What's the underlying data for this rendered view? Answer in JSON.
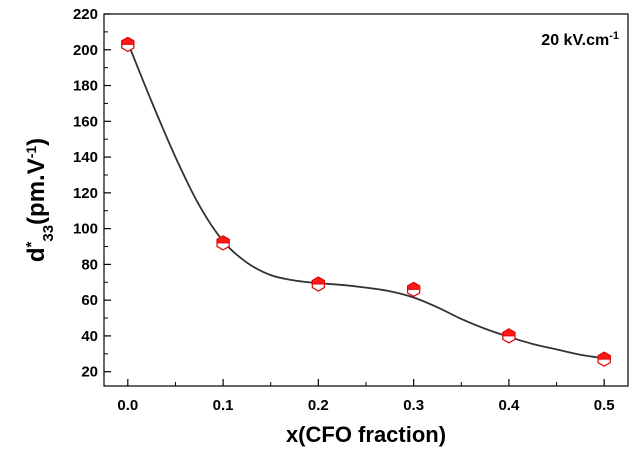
{
  "chart_data": {
    "type": "scatter",
    "xlabel": "x(CFO fraction)",
    "ylabel": {
      "base": "d",
      "sup": "*",
      "sub": "33",
      "unit_main": "(pm.V",
      "unit_sup": "-1",
      "unit_close": ")"
    },
    "annotation": {
      "main": "20 kV.cm",
      "sup": "-1"
    },
    "x_ticks": [
      "0.0",
      "0.1",
      "0.2",
      "0.3",
      "0.4",
      "0.5"
    ],
    "y_ticks": [
      "20",
      "40",
      "60",
      "80",
      "100",
      "120",
      "140",
      "160",
      "180",
      "200",
      "220"
    ],
    "xlim": [
      -0.025,
      0.525
    ],
    "ylim": [
      12,
      220
    ],
    "points": [
      {
        "x": 0.0,
        "y": 203
      },
      {
        "x": 0.1,
        "y": 92
      },
      {
        "x": 0.2,
        "y": 69
      },
      {
        "x": 0.3,
        "y": 66
      },
      {
        "x": 0.4,
        "y": 40
      },
      {
        "x": 0.5,
        "y": 27
      }
    ],
    "fit_curve": [
      [
        0.0,
        204
      ],
      [
        0.025,
        171
      ],
      [
        0.05,
        140
      ],
      [
        0.075,
        113
      ],
      [
        0.1,
        93
      ],
      [
        0.125,
        81
      ],
      [
        0.15,
        74
      ],
      [
        0.175,
        71
      ],
      [
        0.2,
        69.5
      ],
      [
        0.225,
        68.5
      ],
      [
        0.25,
        67
      ],
      [
        0.275,
        65
      ],
      [
        0.3,
        61.5
      ],
      [
        0.325,
        56
      ],
      [
        0.35,
        49.5
      ],
      [
        0.375,
        44
      ],
      [
        0.4,
        39.5
      ],
      [
        0.425,
        35.5
      ],
      [
        0.45,
        32.5
      ],
      [
        0.475,
        29.5
      ],
      [
        0.5,
        27.5
      ]
    ],
    "colors": {
      "marker_fill": "#ff1a1a",
      "marker_stroke": "#e00000",
      "curve": "#333333",
      "axis": "#000000"
    },
    "grid": false,
    "legend": "none"
  }
}
